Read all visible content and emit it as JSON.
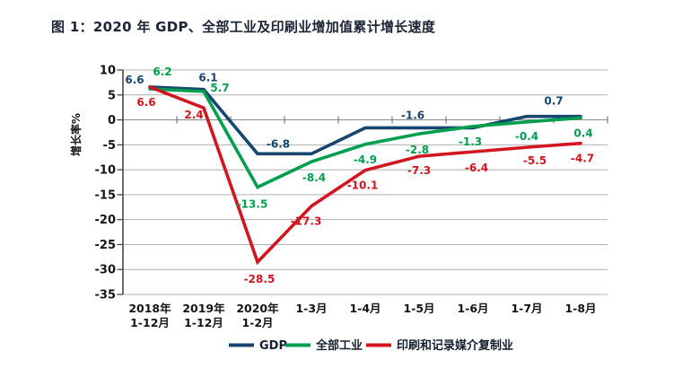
{
  "title": "图 1：2020 年 GDP、全部工业及印刷业增加值累计增长速度",
  "chart_data": {
    "type": "line",
    "title": "图 1：2020 年 GDP、全部工业及印刷业增加值累计增长速度",
    "ylabel": "增长率%",
    "xlabel": "",
    "ylim": [
      -35,
      10
    ],
    "ytick_step": 5,
    "grid": true,
    "legend_position": "bottom",
    "categories": [
      "2018年\n1-12月",
      "2019年\n1-12月",
      "2020年\n1-2月",
      "1-3月",
      "1-4月",
      "1-5月",
      "1-6月",
      "1-7月",
      "1-8月"
    ],
    "series": [
      {
        "name": "GDP",
        "color": "#17466e",
        "values": [
          6.6,
          6.1,
          -6.8,
          -6.8,
          -1.6,
          -1.6,
          -1.6,
          0.7,
          0.7
        ],
        "point_labels": [
          {
            "index": 0,
            "text": "6.6"
          },
          {
            "index": 1,
            "text": "6.1"
          },
          {
            "index": 2,
            "text": "-6.8"
          },
          {
            "index": 5,
            "text": "-1.6"
          },
          {
            "index": 8,
            "text": "0.7"
          }
        ]
      },
      {
        "name": "全部工业",
        "color": "#009e4f",
        "values": [
          6.2,
          5.7,
          -13.5,
          -8.4,
          -4.9,
          -2.8,
          -1.3,
          -0.4,
          0.4
        ],
        "point_labels": [
          {
            "index": 0,
            "text": "6.2"
          },
          {
            "index": 1,
            "text": "5.7"
          },
          {
            "index": 2,
            "text": "-13.5"
          },
          {
            "index": 3,
            "text": "-8.4"
          },
          {
            "index": 4,
            "text": "-4.9"
          },
          {
            "index": 5,
            "text": "-2.8"
          },
          {
            "index": 6,
            "text": "-1.3"
          },
          {
            "index": 7,
            "text": "-0.4"
          },
          {
            "index": 8,
            "text": "0.4"
          }
        ]
      },
      {
        "name": "印刷和记录媒介复制业",
        "color": "#d2151e",
        "values": [
          6.6,
          2.4,
          -28.5,
          -17.3,
          -10.1,
          -7.3,
          -6.4,
          -5.5,
          -4.7
        ],
        "point_labels": [
          {
            "index": 0,
            "text": "6.6"
          },
          {
            "index": 1,
            "text": "2.4"
          },
          {
            "index": 2,
            "text": "-28.5"
          },
          {
            "index": 3,
            "text": "-17.3"
          },
          {
            "index": 4,
            "text": "-10.1"
          },
          {
            "index": 5,
            "text": "-7.3"
          },
          {
            "index": 6,
            "text": "-6.4"
          },
          {
            "index": 7,
            "text": "-5.5"
          },
          {
            "index": 8,
            "text": "-4.7"
          }
        ]
      }
    ]
  },
  "colors": {
    "gridline": "#b0b0b0",
    "zero_line": "#8c8c8c",
    "axis": "#3d3d3d",
    "tick_text": "#141414",
    "legend_text": "#15202f"
  }
}
